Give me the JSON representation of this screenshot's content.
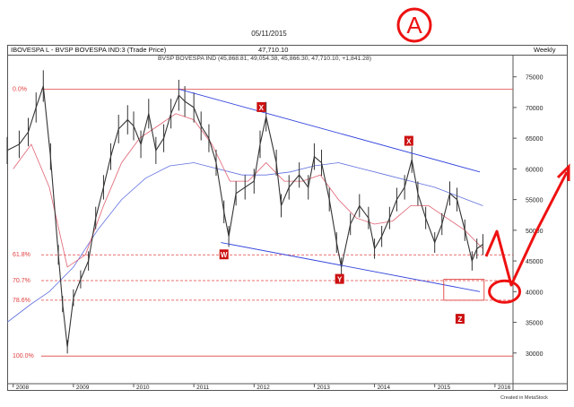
{
  "header": {
    "date": "05/11/2015",
    "symbol": "IBOVESPA L - BVSP BOVESPA IND:3 (Trade Price)",
    "last_value": "47,710.10",
    "period": "Weekly",
    "ohlc": "BVSP BOVESPA IND (45,868.81, 49,054.38, 45,866.30, 47,710.10, +1,841.28)"
  },
  "footer": {
    "credit": "Created in MetaStock"
  },
  "annotation": {
    "circle_label": "A"
  },
  "colors": {
    "price": "#333333",
    "ma_fast": "#e06070",
    "ma_slow": "#6070e0",
    "channel": "#3344dd",
    "fib": "#e04040",
    "marker": "#cc1111",
    "annotation": "#ee1111"
  },
  "chart_data": {
    "type": "line",
    "title": "",
    "x_ticks": [
      "2008",
      "2009",
      "2010",
      "2011",
      "2012",
      "2013",
      "2014",
      "2015",
      "2016"
    ],
    "y_ticks": [
      30000,
      35000,
      40000,
      45000,
      50000,
      55000,
      60000,
      65000,
      70000,
      75000
    ],
    "y_tick_labels": [
      "30000",
      "35000",
      "40000",
      "45000",
      "50000",
      "55000",
      "60000",
      "65000",
      "70000",
      "75000"
    ],
    "xlim": [
      2007.9,
      2016.3
    ],
    "ylim": [
      25000,
      77000
    ],
    "grid": false,
    "fib_levels": [
      {
        "label": "0.0%",
        "value": 73000
      },
      {
        "label": "61.8%",
        "value": 46000
      },
      {
        "label": "70.7%",
        "value": 41800
      },
      {
        "label": "78.6%",
        "value": 38600
      },
      {
        "label": "100.0%",
        "value": 29500
      }
    ],
    "series": [
      {
        "name": "",
        "values_x": [
          2007.9,
          2008.1,
          2008.25,
          2008.38,
          2008.5,
          2008.62,
          2008.75,
          2008.82,
          2008.9,
          2009.0,
          2009.12,
          2009.25,
          2009.37,
          2009.5,
          2009.62,
          2009.75,
          2009.9,
          2010.0,
          2010.12,
          2010.25,
          2010.37,
          2010.5,
          2010.62,
          2010.75,
          2010.85,
          2011.0,
          2011.12,
          2011.25,
          2011.37,
          2011.5,
          2011.58,
          2011.7,
          2011.85,
          2012.0,
          2012.1,
          2012.2,
          2012.37,
          2012.45,
          2012.58,
          2012.75,
          2012.9,
          2013.0,
          2013.12,
          2013.25,
          2013.37,
          2013.45,
          2013.6,
          2013.75,
          2013.9,
          2014.0,
          2014.12,
          2014.25,
          2014.37,
          2014.5,
          2014.62,
          2014.72,
          2014.85,
          2015.0,
          2015.12,
          2015.25,
          2015.37,
          2015.5,
          2015.62,
          2015.7,
          2015.8
        ],
        "values": [
          63000,
          64000,
          66000,
          70000,
          73500,
          62000,
          46000,
          38000,
          31000,
          39000,
          42000,
          45000,
          52000,
          57000,
          62000,
          66500,
          68000,
          67000,
          64000,
          69000,
          63000,
          65000,
          69000,
          72000,
          71000,
          70000,
          67000,
          65000,
          61000,
          53000,
          49000,
          56000,
          57000,
          58000,
          64000,
          68500,
          61000,
          54000,
          57000,
          59000,
          57000,
          62000,
          61000,
          55000,
          48000,
          44000,
          51000,
          54000,
          52000,
          47000,
          49000,
          52000,
          55000,
          57000,
          61500,
          56000,
          52000,
          48000,
          51000,
          56000,
          55000,
          50000,
          45000,
          47000,
          47700
        ]
      },
      {
        "name": "",
        "values_x": [
          2008.0,
          2008.3,
          2008.6,
          2008.9,
          2009.2,
          2009.5,
          2009.8,
          2010.1,
          2010.4,
          2010.7,
          2011.0,
          2011.3,
          2011.6,
          2011.9,
          2012.2,
          2012.5,
          2012.8,
          2013.1,
          2013.4,
          2013.7,
          2014.0,
          2014.3,
          2014.6,
          2014.9,
          2015.2,
          2015.5,
          2015.8
        ],
        "values": [
          60000,
          64000,
          57000,
          44000,
          46000,
          54000,
          61000,
          65000,
          67000,
          69000,
          68000,
          64000,
          58000,
          58000,
          61000,
          58000,
          58000,
          59000,
          55000,
          52000,
          51000,
          51500,
          54000,
          54000,
          52000,
          50000,
          47000
        ]
      },
      {
        "name": "",
        "values_x": [
          2007.9,
          2008.3,
          2008.6,
          2009.0,
          2009.4,
          2009.8,
          2010.2,
          2010.6,
          2011.0,
          2011.4,
          2011.8,
          2012.2,
          2012.6,
          2013.0,
          2013.4,
          2013.8,
          2014.2,
          2014.6,
          2015.0,
          2015.4,
          2015.8
        ],
        "values": [
          35000,
          38000,
          40000,
          44000,
          50000,
          55000,
          58500,
          60500,
          61000,
          60000,
          59000,
          59000,
          59500,
          60500,
          61000,
          60000,
          59000,
          58000,
          57000,
          55500,
          54000
        ]
      }
    ],
    "trendlines": [
      {
        "name": "upper_channel",
        "x": [
          2010.75,
          2015.75
        ],
        "y": [
          73000,
          59500
        ]
      },
      {
        "name": "lower_channel",
        "x": [
          2011.45,
          2015.75
        ],
        "y": [
          48000,
          40000
        ]
      }
    ],
    "wave_labels": [
      {
        "label": "X",
        "x": 2012.12,
        "y": 70000
      },
      {
        "label": "W",
        "x": 2011.5,
        "y": 46000
      },
      {
        "label": "Y",
        "x": 2013.42,
        "y": 42000
      },
      {
        "label": "X",
        "x": 2014.57,
        "y": 64500
      },
      {
        "label": "Z",
        "x": 2015.42,
        "y": 35500
      }
    ],
    "target_box": {
      "x": [
        2015.15,
        2015.82
      ],
      "y": [
        38600,
        42000
      ]
    },
    "target_circle": {
      "x": 2016.1,
      "y": 40000
    }
  }
}
